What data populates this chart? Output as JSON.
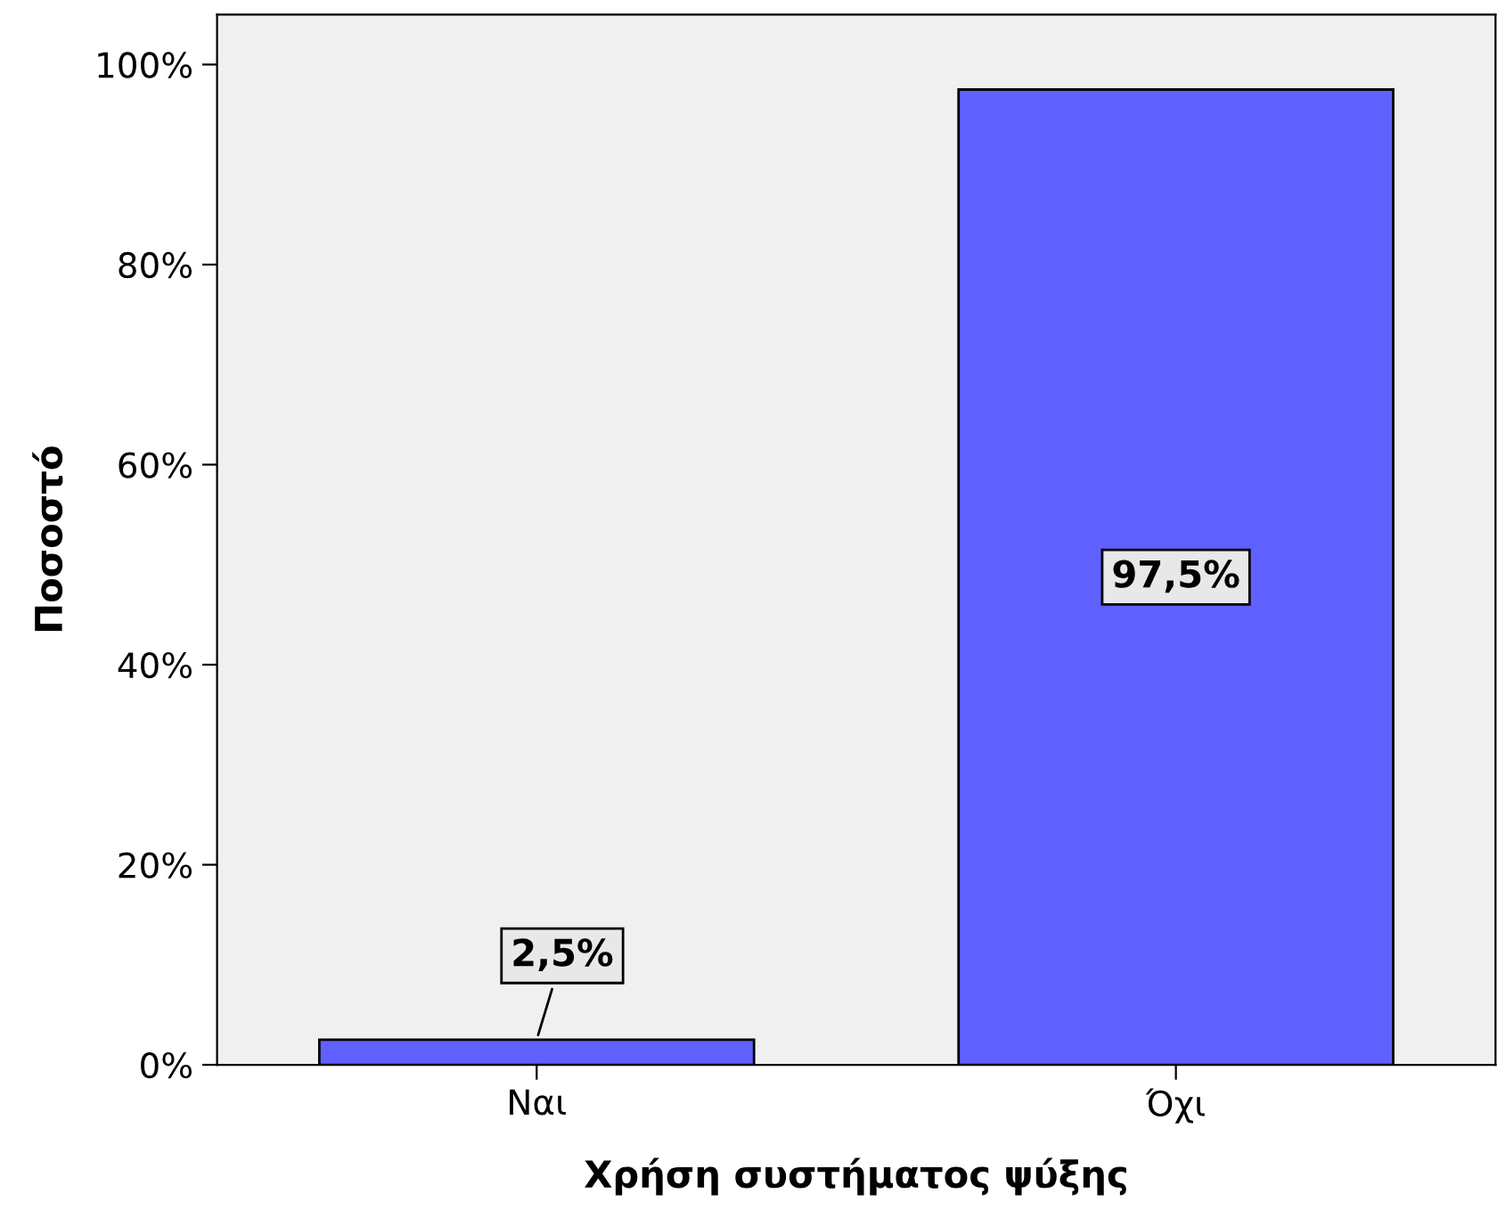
{
  "chart_data": {
    "type": "bar",
    "xlabel": "Χρήση συστήματος ψύξης",
    "ylabel": "Ποσοστό",
    "categories": [
      "Ναι",
      "Όχι"
    ],
    "values": [
      2.5,
      97.5
    ],
    "value_labels": [
      "2,5%",
      "97,5%"
    ],
    "color": "#6060ff",
    "ylim": [
      0,
      105
    ],
    "yticks": [
      {
        "value": 0,
        "label": "0%"
      },
      {
        "value": 20,
        "label": "20%"
      },
      {
        "value": 40,
        "label": "40%"
      },
      {
        "value": 60,
        "label": "60%"
      },
      {
        "value": 80,
        "label": "80%"
      },
      {
        "value": 100,
        "label": "100%"
      }
    ],
    "grid": false,
    "legend": false
  }
}
